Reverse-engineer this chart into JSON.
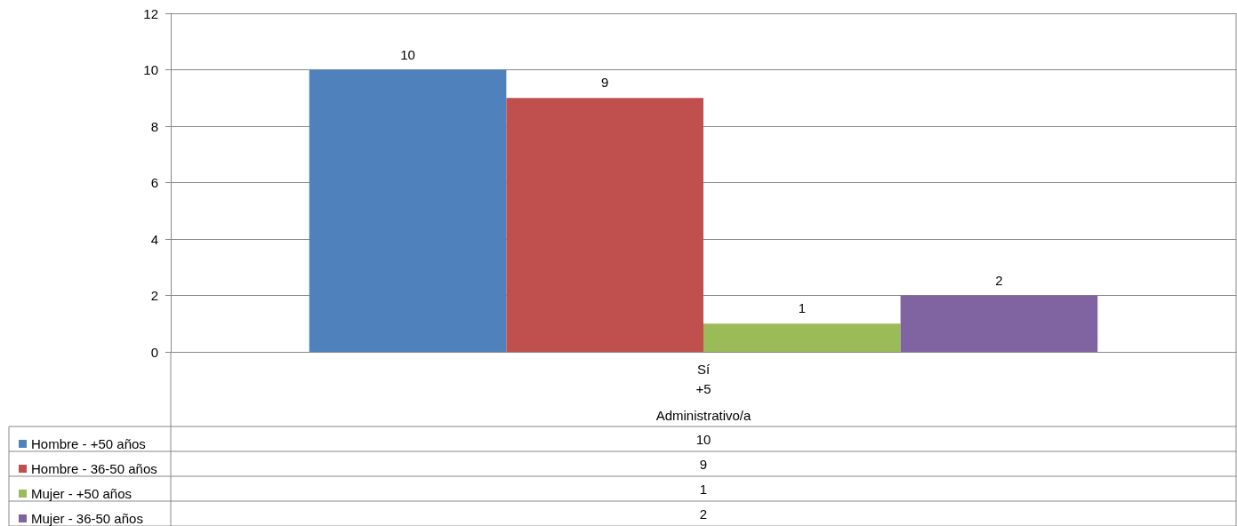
{
  "chart_data": {
    "type": "bar",
    "categories": [
      "Sí"
    ],
    "annotations": [
      "+5",
      "Administrativo/a",
      "10",
      "9",
      "1",
      "2"
    ],
    "series": [
      {
        "name": "Hombre - +50 años",
        "color": "#4f81bd",
        "values": [
          10
        ]
      },
      {
        "name": "Hombre - 36-50 años",
        "color": "#c0504d",
        "values": [
          9
        ]
      },
      {
        "name": "Mujer - +50 años",
        "color": "#9bbb59",
        "values": [
          1
        ]
      },
      {
        "name": "Mujer - 36-50 años",
        "color": "#8064a2",
        "values": [
          2
        ]
      }
    ],
    "ylim": [
      0,
      12
    ],
    "yticks": [
      0,
      2,
      4,
      6,
      8,
      10,
      12
    ],
    "grid": "y",
    "legend": "bottom left",
    "data_labels": true
  }
}
